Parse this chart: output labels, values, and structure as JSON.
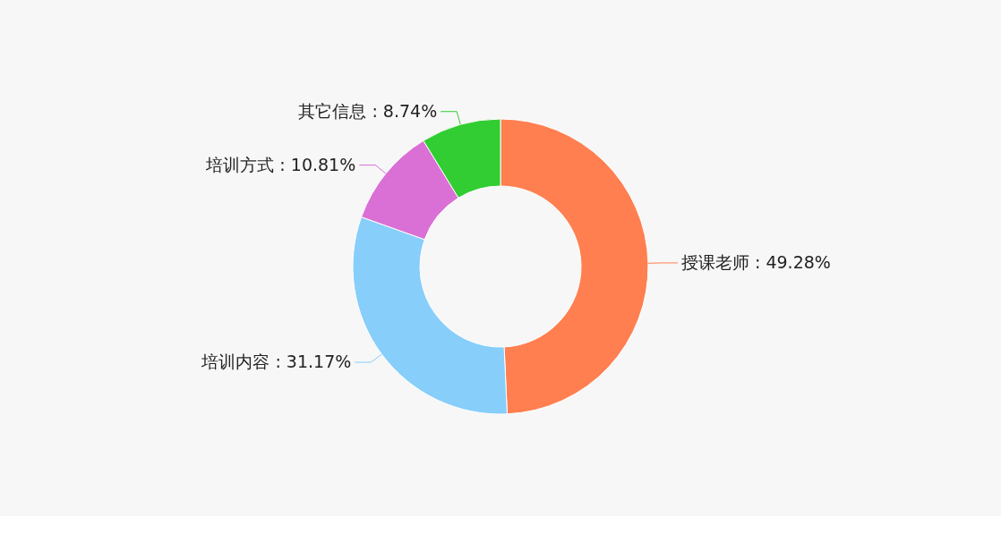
{
  "chart_data": {
    "type": "donut",
    "categories": [
      "授课老师",
      "培训内容",
      "培训方式",
      "其它信息"
    ],
    "values": [
      49.28,
      31.17,
      10.81,
      8.74
    ],
    "value_labels": [
      "49.28%",
      "31.17%",
      "10.81%",
      "8.74%"
    ],
    "colors": [
      "#ff7f50",
      "#87cefa",
      "#da70d6",
      "#32cd32"
    ]
  }
}
